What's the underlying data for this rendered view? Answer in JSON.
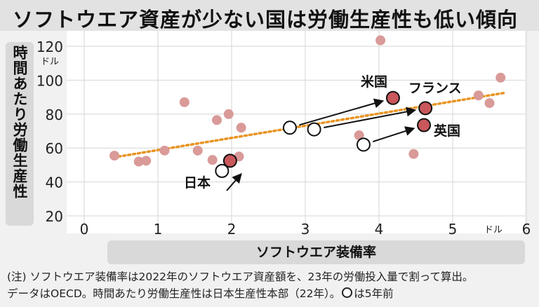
{
  "title": "ソフトウエア資産が少ない国は労働生産性も低い傾向",
  "notes": {
    "line1": "(注) ソフトウエア装備率は2022年のソフトウエア資産額を、23年の労働投入量で割って算出。",
    "line2_a": "データはOECD。時間あたり労働生産性は日本生産性本部（22年）。",
    "line2_b": "は5年前"
  },
  "colors": {
    "point": "#d99a98",
    "highlight": "#c9575b",
    "trend": "#e89422"
  },
  "chart_data": {
    "type": "scatter",
    "title": "ソフトウエア資産が少ない国は労働生産性も低い傾向",
    "xlabel": "ソフトウエア装備率",
    "ylabel": "時間あたり労働生産性",
    "x_unit": "ドル",
    "y_unit": "ドル",
    "xlim": [
      0,
      6
    ],
    "ylim": [
      20,
      120
    ],
    "x_ticks": [
      "0",
      "1",
      "2",
      "3",
      "4",
      "5",
      "6"
    ],
    "y_ticks": [
      "20",
      "40",
      "60",
      "80",
      "100",
      "120"
    ],
    "grid": true,
    "trend_line": {
      "x": [
        0.4,
        5.7
      ],
      "y": [
        54.5,
        92.5
      ],
      "style": "dotted"
    },
    "other_countries": [
      {
        "x": 0.41,
        "y": 55.5
      },
      {
        "x": 0.74,
        "y": 52
      },
      {
        "x": 0.84,
        "y": 52.5
      },
      {
        "x": 1.09,
        "y": 58.5
      },
      {
        "x": 1.36,
        "y": 87
      },
      {
        "x": 1.54,
        "y": 58.5
      },
      {
        "x": 1.74,
        "y": 53
      },
      {
        "x": 1.8,
        "y": 76.5
      },
      {
        "x": 1.96,
        "y": 80
      },
      {
        "x": 2.1,
        "y": 55
      },
      {
        "x": 2.13,
        "y": 72
      },
      {
        "x": 3.73,
        "y": 67.5
      },
      {
        "x": 4.02,
        "y": 123.5
      },
      {
        "x": 4.47,
        "y": 56.5
      },
      {
        "x": 5.35,
        "y": 91
      },
      {
        "x": 5.5,
        "y": 86.5
      },
      {
        "x": 5.65,
        "y": 101.5
      }
    ],
    "highlighted": [
      {
        "name": "米国",
        "x": 4.19,
        "y": 89.5,
        "x_5y_ago": 2.79,
        "y_5y_ago": 72
      },
      {
        "name": "フランス",
        "x": 4.63,
        "y": 83.5,
        "x_5y_ago": 3.12,
        "y_5y_ago": 71
      },
      {
        "name": "英国",
        "x": 4.61,
        "y": 73.5,
        "x_5y_ago": 3.79,
        "y_5y_ago": 62
      },
      {
        "name": "日本",
        "x": 1.98,
        "y": 52.5,
        "x_5y_ago": 1.87,
        "y_5y_ago": 46.5
      }
    ]
  }
}
